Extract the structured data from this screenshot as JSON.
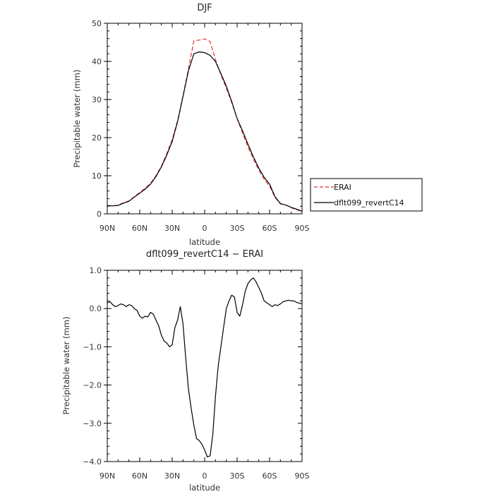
{
  "chart_data": [
    {
      "type": "line",
      "title": "DJF",
      "xlabel": "latitude",
      "ylabel": "Precipitable water (mm)",
      "xlim": [
        90,
        -90
      ],
      "ylim": [
        0,
        50
      ],
      "x_ticks": [
        90,
        60,
        30,
        0,
        -30,
        -60,
        -90
      ],
      "x_tick_labels": [
        "90N",
        "60N",
        "30N",
        "0",
        "30S",
        "60S",
        "90S"
      ],
      "y_ticks": [
        0,
        10,
        20,
        30,
        40,
        50
      ],
      "y_tick_labels": [
        "0",
        "10",
        "20",
        "30",
        "40",
        "50"
      ],
      "legend": {
        "placement": "right-outside"
      },
      "series": [
        {
          "name": "ERAI",
          "color": "#e03030",
          "dash": true,
          "x": [
            90,
            85,
            80,
            75,
            70,
            65,
            60,
            55,
            50,
            45,
            40,
            35,
            30,
            25,
            20,
            15,
            10,
            5,
            0,
            -5,
            -10,
            -15,
            -20,
            -25,
            -30,
            -35,
            -40,
            -45,
            -50,
            -55,
            -60,
            -65,
            -70,
            -75,
            -80,
            -85,
            -90
          ],
          "y": [
            2.2,
            2.1,
            2.3,
            2.9,
            3.4,
            4.5,
            5.6,
            6.7,
            8.0,
            10.0,
            12.5,
            15.8,
            19.5,
            24.5,
            31.0,
            38.0,
            45.4,
            45.6,
            45.9,
            45.2,
            40.5,
            36.5,
            33.0,
            29.2,
            25.0,
            21.2,
            17.6,
            14.4,
            11.5,
            9.1,
            7.3,
            4.3,
            2.6,
            2.3,
            1.6,
            1.1,
            0.6
          ]
        },
        {
          "name": "dflt099_revertC14",
          "color": "#000000",
          "dash": false,
          "x": [
            90,
            85,
            80,
            75,
            70,
            65,
            60,
            55,
            50,
            45,
            40,
            35,
            30,
            25,
            20,
            15,
            10,
            5,
            0,
            -5,
            -10,
            -15,
            -20,
            -25,
            -30,
            -35,
            -40,
            -45,
            -50,
            -55,
            -60,
            -65,
            -70,
            -75,
            -80,
            -85,
            -90
          ],
          "y": [
            2.1,
            2.1,
            2.2,
            2.8,
            3.3,
            4.4,
            5.4,
            6.5,
            7.8,
            9.8,
            12.3,
            15.4,
            19.0,
            24.2,
            30.8,
            37.5,
            42.0,
            42.5,
            42.3,
            41.6,
            40.0,
            36.8,
            33.5,
            29.5,
            25.0,
            21.8,
            18.3,
            15.0,
            12.0,
            9.6,
            7.8,
            4.5,
            2.7,
            2.3,
            1.7,
            1.2,
            0.7
          ]
        }
      ]
    },
    {
      "type": "line",
      "title": "dflt099_revertC14 − ERAI",
      "xlabel": "latitude",
      "ylabel": "Precipitable water (mm)",
      "xlim": [
        90,
        -90
      ],
      "ylim": [
        -4,
        1
      ],
      "x_ticks": [
        90,
        60,
        30,
        0,
        -30,
        -60,
        -90
      ],
      "x_tick_labels": [
        "90N",
        "60N",
        "30N",
        "0",
        "30S",
        "60S",
        "90S"
      ],
      "y_ticks": [
        1,
        0,
        -1,
        -2,
        -3,
        -4
      ],
      "y_tick_labels": [
        "1.0",
        "0.0",
        "−1.0",
        "−2.0",
        "−3.0",
        "−4.0"
      ],
      "series": [
        {
          "color": "#000000",
          "x": [
            90,
            87.5,
            85,
            82.5,
            80,
            77.5,
            75,
            72.5,
            70,
            67.5,
            65,
            62.5,
            60,
            57.5,
            55,
            52.5,
            50,
            47.5,
            45,
            42.5,
            40,
            37.5,
            35,
            32.5,
            30,
            27.5,
            25,
            22.5,
            20,
            17.5,
            15,
            12.5,
            10,
            7.5,
            5,
            2.5,
            0,
            -2.5,
            -5,
            -7.5,
            -10,
            -12.5,
            -15,
            -17.5,
            -20,
            -22.5,
            -25,
            -27.5,
            -30,
            -32.5,
            -35,
            -37.5,
            -40,
            -42.5,
            -45,
            -47.5,
            -50,
            -52.5,
            -55,
            -57.5,
            -60,
            -62.5,
            -65,
            -67.5,
            -70,
            -72.5,
            -75,
            -77.5,
            -80,
            -82.5,
            -85,
            -87.5,
            -90
          ],
          "y": [
            0.15,
            0.18,
            0.1,
            0.05,
            0.08,
            0.12,
            0.1,
            0.05,
            0.1,
            0.08,
            0.0,
            -0.05,
            -0.2,
            -0.25,
            -0.2,
            -0.22,
            -0.1,
            -0.15,
            -0.3,
            -0.45,
            -0.7,
            -0.85,
            -0.9,
            -1.0,
            -0.95,
            -0.5,
            -0.3,
            0.05,
            -0.4,
            -1.3,
            -2.1,
            -2.6,
            -3.05,
            -3.4,
            -3.45,
            -3.55,
            -3.7,
            -3.88,
            -3.85,
            -3.3,
            -2.3,
            -1.5,
            -1.0,
            -0.5,
            0.0,
            0.2,
            0.35,
            0.3,
            -0.1,
            -0.2,
            0.1,
            0.45,
            0.65,
            0.75,
            0.8,
            0.7,
            0.55,
            0.4,
            0.2,
            0.15,
            0.1,
            0.05,
            0.1,
            0.08,
            0.12,
            0.18,
            0.2,
            0.22,
            0.2,
            0.2,
            0.16,
            0.14,
            0.12
          ]
        }
      ]
    }
  ]
}
